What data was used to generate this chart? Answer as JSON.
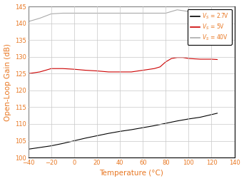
{
  "title": "",
  "xlabel": "Temperature (°C)",
  "ylabel": "Open-Loop Gain (dB)",
  "xlim": [
    -40,
    140
  ],
  "ylim": [
    100,
    145
  ],
  "xticks": [
    -40,
    -20,
    0,
    20,
    40,
    60,
    80,
    100,
    120,
    140
  ],
  "yticks": [
    100,
    105,
    110,
    115,
    120,
    125,
    130,
    135,
    140,
    145
  ],
  "legend_labels": [
    "$V_S$ = 2.7V",
    "$V_S$ = 5V",
    "$V_S$ = 40V"
  ],
  "line_colors": [
    "#000000",
    "#cc0000",
    "#aaaaaa"
  ],
  "background_color": "#ffffff",
  "grid_color": "#c8c8c8",
  "label_color": "#e87722",
  "tick_color": "#e87722",
  "legend_text_color": "#e87722",
  "spine_color": "#000000",
  "series": {
    "black": {
      "x": [
        -40,
        -30,
        -20,
        -10,
        0,
        10,
        20,
        30,
        40,
        50,
        60,
        70,
        80,
        90,
        100,
        110,
        120,
        125
      ],
      "y": [
        102.5,
        103.0,
        103.5,
        104.2,
        105.0,
        105.8,
        106.5,
        107.2,
        107.8,
        108.3,
        108.9,
        109.5,
        110.2,
        110.9,
        111.5,
        112.0,
        112.8,
        113.2
      ]
    },
    "red": {
      "x": [
        -40,
        -30,
        -20,
        -10,
        0,
        10,
        20,
        30,
        40,
        50,
        60,
        70,
        75,
        80,
        85,
        90,
        95,
        100,
        110,
        120,
        125
      ],
      "y": [
        125.0,
        125.5,
        126.5,
        126.5,
        126.3,
        126.0,
        125.8,
        125.5,
        125.5,
        125.5,
        126.0,
        126.5,
        127.0,
        128.5,
        129.5,
        129.8,
        129.8,
        129.5,
        129.3,
        129.3,
        129.2
      ]
    },
    "gray": {
      "x": [
        -40,
        -30,
        -20,
        -10,
        0,
        10,
        20,
        30,
        40,
        50,
        60,
        70,
        80,
        85,
        90,
        100,
        110,
        120,
        125
      ],
      "y": [
        140.5,
        141.5,
        142.8,
        143.0,
        143.0,
        143.0,
        143.0,
        143.0,
        143.0,
        143.0,
        143.0,
        143.0,
        143.0,
        143.5,
        144.0,
        143.5,
        143.0,
        142.5,
        142.0
      ]
    }
  }
}
